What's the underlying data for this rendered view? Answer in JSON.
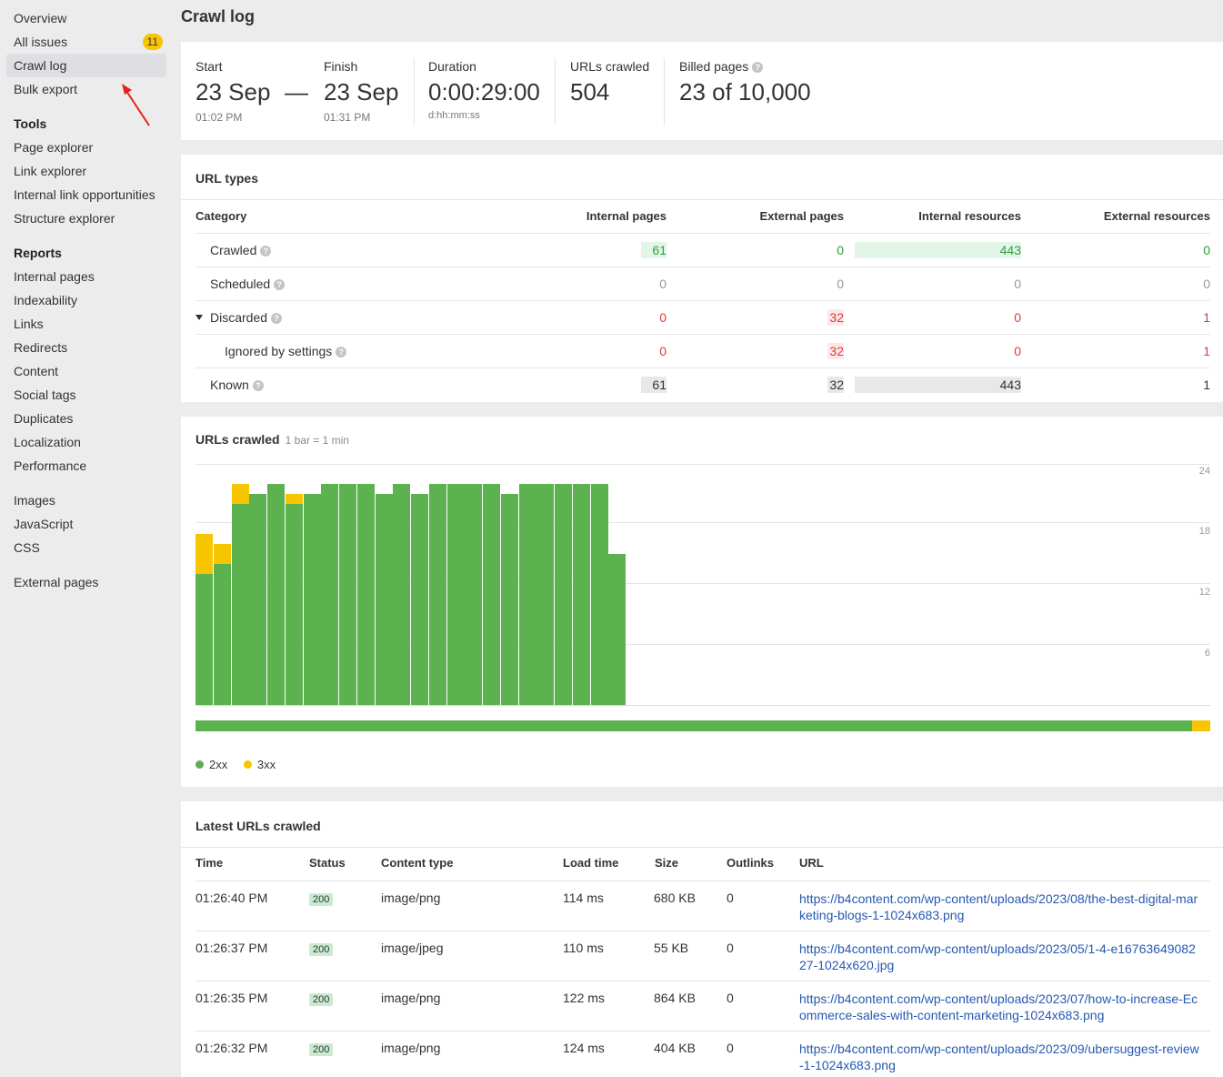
{
  "sidebar": {
    "top_items": [
      {
        "label": "Overview"
      },
      {
        "label": "All issues",
        "badge": "11"
      },
      {
        "label": "Crawl log",
        "active": true
      },
      {
        "label": "Bulk export"
      }
    ],
    "tools_heading": "Tools",
    "tools": [
      "Page explorer",
      "Link explorer",
      "Internal link opportunities",
      "Structure explorer"
    ],
    "reports_heading": "Reports",
    "reports": [
      "Internal pages",
      "Indexability",
      "Links",
      "Redirects",
      "Content",
      "Social tags",
      "Duplicates",
      "Localization",
      "Performance"
    ],
    "resources": [
      "Images",
      "JavaScript",
      "CSS"
    ],
    "external": [
      "External pages"
    ]
  },
  "page": {
    "title": "Crawl log"
  },
  "stats": {
    "start_label": "Start",
    "start_value": "23 Sep",
    "start_time": "01:02 PM",
    "dash": "—",
    "finish_label": "Finish",
    "finish_value": "23 Sep",
    "finish_time": "01:31 PM",
    "duration_label": "Duration",
    "duration_value": "0:00:29:00",
    "duration_format": "d:hh:mm:ss",
    "urls_crawled_label": "URLs crawled",
    "urls_crawled_value": "504",
    "billed_label": "Billed pages",
    "billed_value": "23 of 10,000"
  },
  "url_types": {
    "title": "URL types",
    "headers": {
      "category": "Category",
      "internal_pages": "Internal pages",
      "external_pages": "External pages",
      "internal_resources": "Internal resources",
      "external_resources": "External resources"
    },
    "rows": [
      {
        "category": "Crawled",
        "internal_pages": "61",
        "external_pages": "0",
        "internal_resources": "443",
        "external_resources": "0"
      },
      {
        "category": "Scheduled",
        "internal_pages": "0",
        "external_pages": "0",
        "internal_resources": "0",
        "external_resources": "0"
      },
      {
        "category": "Discarded",
        "internal_pages": "0",
        "external_pages": "32",
        "internal_resources": "0",
        "external_resources": "1"
      },
      {
        "category": "Ignored by settings",
        "internal_pages": "0",
        "external_pages": "32",
        "internal_resources": "0",
        "external_resources": "1"
      },
      {
        "category": "Known",
        "internal_pages": "61",
        "external_pages": "32",
        "internal_resources": "443",
        "external_resources": "1"
      }
    ]
  },
  "urls_crawled_chart": {
    "title": "URLs crawled",
    "subtitle": "1 bar = 1 min",
    "legend": [
      {
        "name": "2xx",
        "color": "#5bb24f"
      },
      {
        "name": "3xx",
        "color": "#f7c600"
      }
    ]
  },
  "chart_data": {
    "type": "bar",
    "stacked": true,
    "ylim": [
      0,
      24
    ],
    "yticks": [
      "24",
      "18",
      "12",
      "6"
    ],
    "series": [
      {
        "name": "2xx",
        "color": "#5bb24f",
        "values": [
          13,
          14,
          20,
          21,
          22,
          20,
          21,
          22,
          22,
          22,
          21,
          22,
          21,
          22,
          22,
          22,
          22,
          21,
          22,
          22,
          22,
          22,
          22,
          15
        ]
      },
      {
        "name": "3xx",
        "color": "#f7c600",
        "values": [
          4,
          2,
          2,
          0,
          0,
          1,
          0,
          0,
          0,
          0,
          0,
          0,
          0,
          0,
          0,
          0,
          0,
          0,
          0,
          0,
          0,
          0,
          0,
          0
        ]
      }
    ],
    "progress_2xx_fraction": 0.982,
    "progress_3xx_fraction": 0.018
  },
  "latest": {
    "title": "Latest URLs crawled",
    "headers": {
      "time": "Time",
      "status": "Status",
      "content_type": "Content type",
      "load_time": "Load time",
      "size": "Size",
      "outlinks": "Outlinks",
      "url": "URL"
    },
    "rows": [
      {
        "time": "01:26:40 PM",
        "status": "200",
        "content_type": "image/png",
        "load_time": "114 ms",
        "size": "680 KB",
        "outlinks": "0",
        "url": "https://b4content.com/wp-content/uploads/2023/08/the-best-digital-marketing-blogs-1-1024x683.png"
      },
      {
        "time": "01:26:37 PM",
        "status": "200",
        "content_type": "image/jpeg",
        "load_time": "110 ms",
        "size": "55 KB",
        "outlinks": "0",
        "url": "https://b4content.com/wp-content/uploads/2023/05/1-4-e1676364908227-1024x620.jpg"
      },
      {
        "time": "01:26:35 PM",
        "status": "200",
        "content_type": "image/png",
        "load_time": "122 ms",
        "size": "864 KB",
        "outlinks": "0",
        "url": "https://b4content.com/wp-content/uploads/2023/07/how-to-increase-Ecommerce-sales-with-content-marketing-1024x683.png"
      },
      {
        "time": "01:26:32 PM",
        "status": "200",
        "content_type": "image/png",
        "load_time": "124 ms",
        "size": "404 KB",
        "outlinks": "0",
        "url": "https://b4content.com/wp-content/uploads/2023/09/ubersuggest-review-1-1024x683.png"
      }
    ]
  }
}
